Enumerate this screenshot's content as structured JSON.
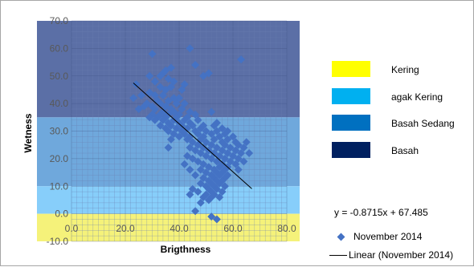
{
  "chart_data": {
    "type": "scatter",
    "title": "",
    "xlabel": "Brigthness",
    "ylabel": "Wetness",
    "xlim": [
      0,
      80
    ],
    "ylim": [
      -10,
      70
    ],
    "x_ticks": [
      "0.0",
      "20.0",
      "40.0",
      "60.0",
      "80.0"
    ],
    "y_ticks": [
      "70.0",
      "60.0",
      "50.0",
      "40.0",
      "30.0",
      "20.0",
      "10.0",
      "0.0",
      "-10.0"
    ],
    "grid": true,
    "zones": [
      {
        "name": "Basah",
        "y_from": 35,
        "y_to": 70,
        "color": "#5b6fa6"
      },
      {
        "name": "Basah Sedang",
        "y_from": 10,
        "y_to": 35,
        "color": "#6fa8dc"
      },
      {
        "name": "agak Kering",
        "y_from": 0,
        "y_to": 10,
        "color": "#87cefa"
      },
      {
        "name": "Kering",
        "y_from": -10,
        "y_to": 0,
        "color": "#f5f27a"
      }
    ],
    "legend_zones": [
      {
        "label": "Kering",
        "color": "#ffff00"
      },
      {
        "label": "agak Kering",
        "color": "#00b0f0"
      },
      {
        "label": "Basah Sedang",
        "color": "#0070c0"
      },
      {
        "label": "Basah",
        "color": "#002060"
      }
    ],
    "series": [
      {
        "name": "November 2014",
        "marker": "diamond",
        "color": "#4472c4",
        "points": [
          [
            30,
            58
          ],
          [
            44,
            60
          ],
          [
            63,
            56
          ],
          [
            46,
            54
          ],
          [
            37,
            53
          ],
          [
            35,
            52
          ],
          [
            49,
            50
          ],
          [
            51,
            51
          ],
          [
            34,
            51
          ],
          [
            33,
            50
          ],
          [
            29,
            50
          ],
          [
            36,
            49
          ],
          [
            38,
            48
          ],
          [
            31,
            48
          ],
          [
            42,
            47
          ],
          [
            24,
            47
          ],
          [
            33,
            46
          ],
          [
            37,
            46
          ],
          [
            41,
            45
          ],
          [
            35,
            45
          ],
          [
            29,
            44
          ],
          [
            26,
            43
          ],
          [
            31,
            43
          ],
          [
            34,
            43
          ],
          [
            38,
            42
          ],
          [
            40,
            42
          ],
          [
            23,
            42
          ],
          [
            32,
            41
          ],
          [
            36,
            41
          ],
          [
            28,
            40
          ],
          [
            33,
            40
          ],
          [
            39,
            40
          ],
          [
            42,
            40
          ],
          [
            27,
            39
          ],
          [
            30,
            39
          ],
          [
            35,
            39
          ],
          [
            37,
            38
          ],
          [
            41,
            38
          ],
          [
            25,
            38
          ],
          [
            31,
            38
          ],
          [
            34,
            37
          ],
          [
            38,
            37
          ],
          [
            44,
            37
          ],
          [
            52,
            37
          ],
          [
            30,
            36
          ],
          [
            33,
            36
          ],
          [
            36,
            36
          ],
          [
            40,
            36
          ],
          [
            46,
            36
          ],
          [
            29,
            35
          ],
          [
            32,
            35
          ],
          [
            35,
            35
          ],
          [
            39,
            35
          ],
          [
            43,
            35
          ],
          [
            31,
            34
          ],
          [
            34,
            34
          ],
          [
            38,
            34
          ],
          [
            42,
            34
          ],
          [
            47,
            34
          ],
          [
            36,
            33
          ],
          [
            40,
            33
          ],
          [
            44,
            33
          ],
          [
            54,
            33
          ],
          [
            33,
            32
          ],
          [
            37,
            32
          ],
          [
            41,
            32
          ],
          [
            45,
            32
          ],
          [
            49,
            32
          ],
          [
            53,
            32
          ],
          [
            35,
            31
          ],
          [
            39,
            31
          ],
          [
            43,
            31
          ],
          [
            48,
            31
          ],
          [
            56,
            31
          ],
          [
            36,
            30
          ],
          [
            41,
            30
          ],
          [
            46,
            30
          ],
          [
            50,
            30
          ],
          [
            54,
            30
          ],
          [
            58,
            30
          ],
          [
            38,
            29
          ],
          [
            42,
            29
          ],
          [
            47,
            29
          ],
          [
            52,
            29
          ],
          [
            57,
            29
          ],
          [
            40,
            28
          ],
          [
            44,
            28
          ],
          [
            49,
            28
          ],
          [
            55,
            28
          ],
          [
            60,
            28
          ],
          [
            37,
            27
          ],
          [
            43,
            27
          ],
          [
            48,
            27
          ],
          [
            53,
            27
          ],
          [
            58,
            27
          ],
          [
            45,
            26
          ],
          [
            50,
            26
          ],
          [
            56,
            26
          ],
          [
            61,
            26
          ],
          [
            65,
            26
          ],
          [
            47,
            25
          ],
          [
            52,
            25
          ],
          [
            57,
            25
          ],
          [
            62,
            25
          ],
          [
            36,
            24
          ],
          [
            44,
            24
          ],
          [
            49,
            24
          ],
          [
            54,
            24
          ],
          [
            59,
            24
          ],
          [
            64,
            24
          ],
          [
            46,
            23
          ],
          [
            51,
            23
          ],
          [
            56,
            23
          ],
          [
            61,
            23
          ],
          [
            66,
            22
          ],
          [
            48,
            22
          ],
          [
            53,
            22
          ],
          [
            58,
            22
          ],
          [
            63,
            22
          ],
          [
            43,
            21
          ],
          [
            50,
            21
          ],
          [
            55,
            21
          ],
          [
            60,
            21
          ],
          [
            45,
            20
          ],
          [
            52,
            20
          ],
          [
            57,
            20
          ],
          [
            62,
            20
          ],
          [
            47,
            19
          ],
          [
            54,
            19
          ],
          [
            59,
            19
          ],
          [
            64,
            19
          ],
          [
            42,
            18
          ],
          [
            49,
            18
          ],
          [
            56,
            18
          ],
          [
            61,
            18
          ],
          [
            51,
            17
          ],
          [
            55,
            17
          ],
          [
            58,
            17
          ],
          [
            44,
            16
          ],
          [
            48,
            16
          ],
          [
            53,
            16
          ],
          [
            57,
            16
          ],
          [
            62,
            16
          ],
          [
            50,
            15
          ],
          [
            54,
            15
          ],
          [
            56,
            15
          ],
          [
            46,
            14
          ],
          [
            52,
            14
          ],
          [
            55,
            14
          ],
          [
            58,
            14
          ],
          [
            49,
            13
          ],
          [
            53,
            13
          ],
          [
            57,
            13
          ],
          [
            51,
            12
          ],
          [
            54,
            12
          ],
          [
            56,
            12
          ],
          [
            48,
            11
          ],
          [
            52,
            11
          ],
          [
            55,
            11
          ],
          [
            50,
            10
          ],
          [
            53,
            10
          ],
          [
            57,
            10
          ],
          [
            45,
            9
          ],
          [
            51,
            9
          ],
          [
            54,
            9
          ],
          [
            47,
            8
          ],
          [
            52,
            8
          ],
          [
            56,
            8
          ],
          [
            44,
            7
          ],
          [
            50,
            7
          ],
          [
            53,
            7
          ],
          [
            49,
            6
          ],
          [
            52,
            6
          ],
          [
            55,
            6
          ],
          [
            51,
            5
          ],
          [
            48,
            4
          ],
          [
            46,
            1
          ],
          [
            52,
            -1
          ],
          [
            54,
            -2
          ]
        ]
      }
    ],
    "trendline": {
      "name": "Linear (November 2014)",
      "slope": -0.8715,
      "intercept": 67.485,
      "x_range": [
        23,
        67
      ],
      "equation": "y = -0.8715x + 67.485",
      "color": "#000000"
    }
  }
}
